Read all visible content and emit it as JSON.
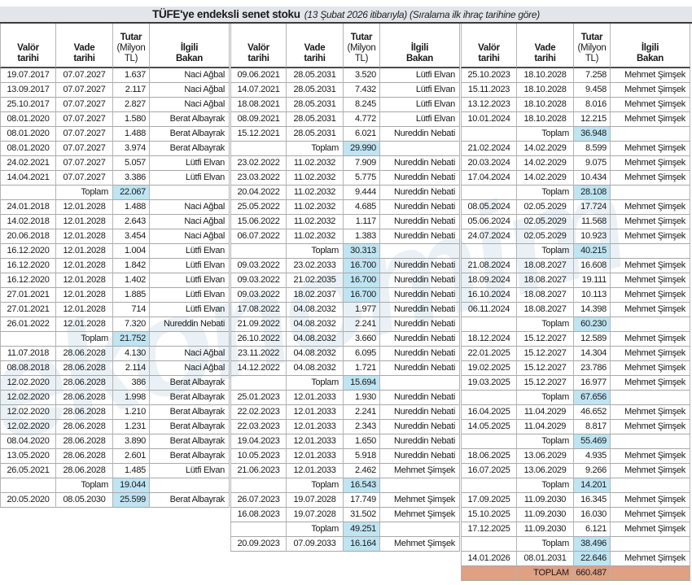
{
  "title": {
    "main": "TÜFE'ye endeksli senet stoku",
    "subtitle": "(13 Şubat 2026 itibarıyla) (Sıralama ilk ihraç tarihine göre)"
  },
  "watermark": "ekonomim",
  "labels": {
    "sum": "Toplam",
    "grand": "TOPLAM"
  },
  "colors": {
    "title_band_bg": "#e2e6eb",
    "highlight_blue": "#bfe4f2",
    "grand_total_bg": "#dfa083",
    "rule_dark": "#3c3c3c",
    "grid_line": "#a8a8a8"
  },
  "headers": {
    "valor": [
      "Valör",
      "tarihi"
    ],
    "vade": [
      "Vade",
      "tarihi"
    ],
    "tutar_main": "Tutar",
    "tutar_sub": [
      "(Milyon",
      "TL)"
    ],
    "bakan": [
      "İlgili",
      "Bakan"
    ]
  },
  "chart_data": {
    "type": "table",
    "title": "TÜFE'ye endeksli senet stoku",
    "subtitle": "(13 Şubat 2026 itibarıyla) (Sıralama ilk ihraç tarihine göre)",
    "columns": [
      "Valör tarihi",
      "Vade tarihi",
      "Tutar (Milyon TL)",
      "İlgili Bakan"
    ],
    "grand_total": {
      "label": "TOPLAM",
      "value": "660.487"
    },
    "tables": [
      {
        "rows": [
          [
            "19.07.2017",
            "07.07.2027",
            "1.637",
            "Naci Ağbal"
          ],
          [
            "13.09.2017",
            "07.07.2027",
            "2.117",
            "Naci Ağbal"
          ],
          [
            "25.10.2017",
            "07.07.2027",
            "2.827",
            "Naci Ağbal"
          ],
          [
            "08.01.2020",
            "07.07.2027",
            "1.580",
            "Berat Albayrak"
          ],
          [
            "08.01.2020",
            "07.07.2027",
            "1.488",
            "Berat Albayrak"
          ],
          [
            "08.01.2020",
            "07.07.2027",
            "3.974",
            "Berat Albayrak"
          ],
          [
            "24.02.2021",
            "07.07.2027",
            "5.057",
            "Lütfi Elvan"
          ],
          [
            "14.04.2021",
            "07.07.2027",
            "3.386",
            "Lütfi Elvan"
          ],
          {
            "sum": "22.067"
          },
          [
            "24.01.2018",
            "12.01.2028",
            "1.488",
            "Naci Ağbal"
          ],
          [
            "14.02.2018",
            "12.01.2028",
            "2.643",
            "Naci Ağbal"
          ],
          [
            "20.06.2018",
            "12.01.2028",
            "3.454",
            "Naci Ağbal"
          ],
          [
            "16.12.2020",
            "12.01.2028",
            "1.004",
            "Lütfi Elvan"
          ],
          [
            "16.12.2020",
            "12.01.2028",
            "1.842",
            "Lütfi Elvan"
          ],
          [
            "16.12.2020",
            "12.01.2028",
            "1.402",
            "Lütfi Elvan"
          ],
          [
            "27.01.2021",
            "12.01.2028",
            "1.885",
            "Lütfi Elvan"
          ],
          [
            "27.01.2021",
            "12.01.2028",
            "714",
            "Lütfi Elvan"
          ],
          [
            "26.01.2022",
            "12.01.2028",
            "7.320",
            "Nureddin Nebati"
          ],
          {
            "sum": "21.752"
          },
          [
            "11.07.2018",
            "28.06.2028",
            "4.130",
            "Naci Ağbal"
          ],
          [
            "08.08.2018",
            "28.06.2028",
            "2.114",
            "Naci Ağbal"
          ],
          [
            "12.02.2020",
            "28.06.2028",
            "386",
            "Berat Albayrak"
          ],
          [
            "12.02.2020",
            "28.06.2028",
            "1.998",
            "Berat Albayrak"
          ],
          [
            "12.02.2020",
            "28.06.2028",
            "1.210",
            "Berat Albayrak"
          ],
          [
            "12.02.2020",
            "28.06.2028",
            "1.231",
            "Berat Albayrak"
          ],
          [
            "08.04.2020",
            "28.06.2028",
            "3.890",
            "Berat Albayrak"
          ],
          [
            "13.05.2020",
            "28.06.2028",
            "2.601",
            "Berat Albayrak"
          ],
          [
            "26.05.2021",
            "28.06.2028",
            "1.485",
            "Lütfi Elvan"
          ],
          {
            "sum": "19.044"
          },
          [
            "20.05.2020",
            "08.05.2030",
            "25.599",
            "Berat Albayrak",
            "hl"
          ]
        ]
      },
      {
        "rows": [
          [
            "09.06.2021",
            "28.05.2031",
            "3.520",
            "Lütfi Elvan"
          ],
          [
            "14.07.2021",
            "28.05.2031",
            "7.432",
            "Lütfi Elvan"
          ],
          [
            "18.08.2021",
            "28.05.2031",
            "8.245",
            "Lütfi Elvan"
          ],
          [
            "08.09.2021",
            "28.05.2031",
            "4.772",
            "Lütfi Elvan"
          ],
          [
            "15.12.2021",
            "28.05.2031",
            "6.021",
            "Nureddin Nebati"
          ],
          {
            "sum": "29.990"
          },
          [
            "23.02.2022",
            "11.02.2032",
            "7.909",
            "Nureddin Nebati"
          ],
          [
            "23.03.2022",
            "11.02.2032",
            "5.775",
            "Nureddin Nebati"
          ],
          [
            "20.04.2022",
            "11.02.2032",
            "9.444",
            "Nureddin Nebati"
          ],
          [
            "25.05.2022",
            "11.02.2032",
            "4.685",
            "Nureddin Nebati"
          ],
          [
            "15.06.2022",
            "11.02.2032",
            "1.117",
            "Nureddin Nebati"
          ],
          [
            "06.07.2022",
            "11.02.2032",
            "1.383",
            "Nureddin Nebati"
          ],
          {
            "sum": "30.313"
          },
          [
            "09.03.2022",
            "23.02.2033",
            "16.700",
            "Nureddin Nebati",
            "hl"
          ],
          [
            "09.03.2022",
            "21.02.2035",
            "16.700",
            "Nureddin Nebati",
            "hl"
          ],
          [
            "09.03.2022",
            "18.02.2037",
            "16.700",
            "Nureddin Nebati",
            "hl"
          ],
          [
            "17.08.2022",
            "04.08.2032",
            "1.977",
            "Nureddin Nebati"
          ],
          [
            "21.09.2022",
            "04.08.2032",
            "2.241",
            "Nureddin Nebati"
          ],
          [
            "26.10.2022",
            "04.08.2032",
            "3.660",
            "Nureddin Nebati"
          ],
          [
            "23.11.2022",
            "04.08.2032",
            "6.095",
            "Nureddin Nebati"
          ],
          [
            "14.12.2022",
            "04.08.2032",
            "1.721",
            "Nureddin Nebati"
          ],
          {
            "sum": "15.694"
          },
          [
            "25.01.2023",
            "12.01.2033",
            "1.930",
            "Nureddin Nebati"
          ],
          [
            "22.02.2023",
            "12.01.2033",
            "2.241",
            "Nureddin Nebati"
          ],
          [
            "22.03.2023",
            "12.01.2033",
            "2.343",
            "Nureddin Nebati"
          ],
          [
            "19.04.2023",
            "12.01.2033",
            "1.650",
            "Nureddin Nebati"
          ],
          [
            "10.05.2023",
            "12.01.2033",
            "5.918",
            "Nureddin Nebati"
          ],
          [
            "21.06.2023",
            "12.01.2033",
            "2.462",
            "Mehmet Şimşek"
          ],
          {
            "sum": "16.543"
          },
          [
            "26.07.2023",
            "19.07.2028",
            "17.749",
            "Mehmet Şimşek"
          ],
          [
            "16.08.2023",
            "19.07.2028",
            "31.502",
            "Mehmet Şimşek"
          ],
          {
            "sum": "49.251"
          },
          [
            "20.09.2023",
            "07.09.2033",
            "16.164",
            "Mehmet Şimşek",
            "hl"
          ]
        ]
      },
      {
        "rows": [
          [
            "25.10.2023",
            "18.10.2028",
            "7.258",
            "Mehmet Şimşek"
          ],
          [
            "15.11.2023",
            "18.10.2028",
            "9.458",
            "Mehmet Şimşek"
          ],
          [
            "13.12.2023",
            "18.10.2028",
            "8.016",
            "Mehmet Şimşek"
          ],
          [
            "10.01.2024",
            "18.10.2028",
            "12.215",
            "Mehmet Şimşek"
          ],
          {
            "sum": "36.948"
          },
          [
            "21.02.2024",
            "14.02.2029",
            "8.599",
            "Mehmet Şimşek"
          ],
          [
            "20.03.2024",
            "14.02.2029",
            "9.075",
            "Mehmet Şimşek"
          ],
          [
            "17.04.2024",
            "14.02.2029",
            "10.434",
            "Mehmet Şimşek"
          ],
          {
            "sum": "28.108"
          },
          [
            "08.05.2024",
            "02.05.2029",
            "17.724",
            "Mehmet Şimşek"
          ],
          [
            "05.06.2024",
            "02.05.2029",
            "11.568",
            "Mehmet Şimşek"
          ],
          [
            "24.07.2024",
            "02.05.2029",
            "10.923",
            "Mehmet Şimşek"
          ],
          {
            "sum": "40.215"
          },
          [
            "21.08.2024",
            "18.08.2027",
            "16.608",
            "Mehmet Şimşek"
          ],
          [
            "18.09.2024",
            "18.08.2027",
            "19.111",
            "Mehmet Şimşek"
          ],
          [
            "16.10.2024",
            "18.08.2027",
            "10.113",
            "Mehmet Şimşek"
          ],
          [
            "06.11.2024",
            "18.08.2027",
            "14.398",
            "Mehmet Şimşek"
          ],
          {
            "sum": "60.230"
          },
          [
            "18.12.2024",
            "15.12.2027",
            "12.589",
            "Mehmet Şimşek"
          ],
          [
            "22.01.2025",
            "15.12.2027",
            "14.304",
            "Mehmet Şimşek"
          ],
          [
            "19.02.2025",
            "15.12.2027",
            "23.786",
            "Mehmet Şimşek"
          ],
          [
            "19.03.2025",
            "15.12.2027",
            "16.977",
            "Mehmet Şimşek"
          ],
          {
            "sum": "67.656"
          },
          [
            "16.04.2025",
            "11.04.2029",
            "46.652",
            "Mehmet Şimşek"
          ],
          [
            "14.05.2025",
            "11.04.2029",
            "8.817",
            "Mehmet Şimşek"
          ],
          {
            "sum": "55.469"
          },
          [
            "18.06.2025",
            "13.06.2029",
            "4.935",
            "Mehmet Şimşek"
          ],
          [
            "16.07.2025",
            "13.06.2029",
            "9.266",
            "Mehmet Şimşek"
          ],
          {
            "sum": "14.201"
          },
          [
            "17.09.2025",
            "11.09.2030",
            "16.345",
            "Mehmet Şimşek"
          ],
          [
            "15.10.2025",
            "11.09.2030",
            "16.030",
            "Mehmet Şimşek"
          ],
          [
            "17.12.2025",
            "11.09.2030",
            "6.121",
            "Mehmet Şimşek"
          ],
          {
            "sum": "38.496"
          },
          [
            "14.01.2026",
            "08.01.2031",
            "22.646",
            "Mehmet Şimşek",
            "hl"
          ],
          {
            "grand": "660.487"
          }
        ]
      }
    ]
  }
}
